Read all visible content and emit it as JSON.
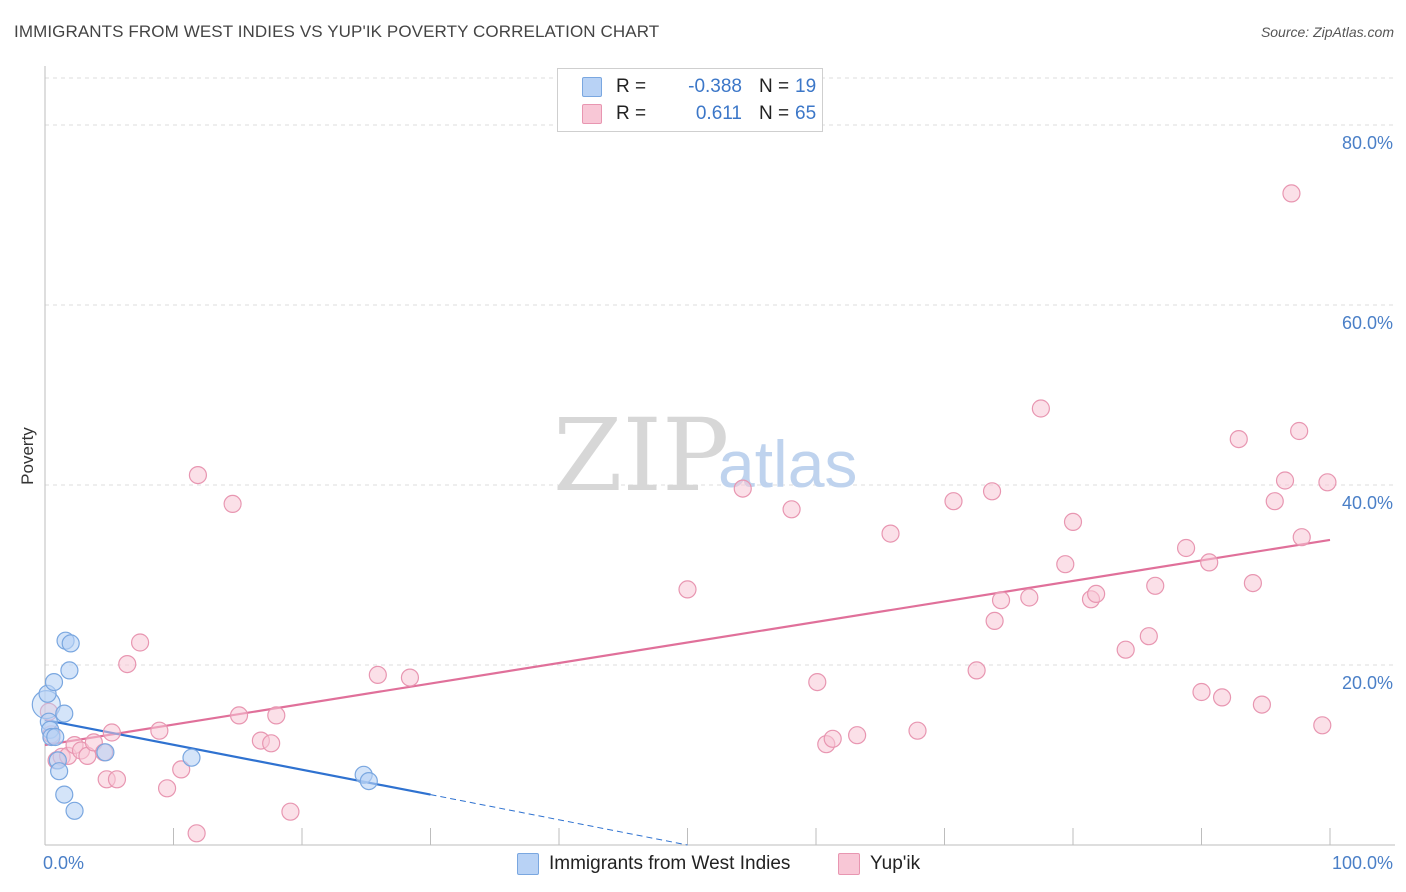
{
  "header": {
    "title": "IMMIGRANTS FROM WEST INDIES VS YUP'IK POVERTY CORRELATION CHART",
    "source": "Source: ZipAtlas.com"
  },
  "watermark": {
    "zip": "ZIP",
    "atlas": "atlas"
  },
  "legend": {
    "rows": [
      {
        "r_label": "R =",
        "r_value": "-0.388",
        "n_label": "N =",
        "n_value": "19"
      },
      {
        "r_label": "R =",
        "r_value": "0.611",
        "n_label": "N =",
        "n_value": "65"
      }
    ]
  },
  "bottom_legend": {
    "items": [
      {
        "label": "Immigrants from West Indies"
      },
      {
        "label": "Yup'ik"
      }
    ]
  },
  "colors": {
    "blue_fill": "#b8d2f5",
    "blue_stroke": "#7aa7e0",
    "blue_line": "#2f72d0",
    "pink_fill": "#f8c7d6",
    "pink_stroke": "#e896b1",
    "pink_line": "#e0709a",
    "tick_text": "#4a7fc7"
  },
  "chart_data": {
    "type": "scatter",
    "title": "IMMIGRANTS FROM WEST INDIES VS YUP'IK POVERTY CORRELATION CHART",
    "xlabel": "",
    "ylabel": "Poverty",
    "xlim": [
      0,
      100
    ],
    "ylim": [
      0,
      85
    ],
    "x_tick_labels": [
      "0.0%",
      "100.0%"
    ],
    "y_ticks": [
      {
        "value": 20,
        "label": "20.0%"
      },
      {
        "value": 40,
        "label": "40.0%"
      },
      {
        "value": 60,
        "label": "60.0%"
      },
      {
        "value": 80,
        "label": "80.0%"
      }
    ],
    "grid": true,
    "legend_position": "top-center",
    "series": [
      {
        "name": "Immigrants from West Indies",
        "color": "#7aa7e0",
        "points": [
          [
            0.1,
            15.6
          ],
          [
            0.2,
            16.8
          ],
          [
            0.3,
            13.7
          ],
          [
            0.4,
            12.8
          ],
          [
            0.5,
            12.0
          ],
          [
            0.7,
            18.1
          ],
          [
            0.8,
            12.0
          ],
          [
            1.0,
            9.4
          ],
          [
            1.1,
            8.2
          ],
          [
            1.5,
            14.6
          ],
          [
            1.5,
            5.6
          ],
          [
            1.6,
            22.7
          ],
          [
            1.9,
            19.4
          ],
          [
            2.0,
            22.4
          ],
          [
            2.3,
            3.8
          ],
          [
            4.7,
            10.3
          ],
          [
            11.4,
            9.7
          ],
          [
            24.8,
            7.8
          ],
          [
            25.2,
            7.1
          ]
        ],
        "trend": {
          "x": [
            0,
            30
          ],
          "y": [
            13.9,
            5.6
          ]
        },
        "trend_dashed": {
          "x": [
            30,
            50
          ],
          "y": [
            5.6,
            0.0
          ]
        }
      },
      {
        "name": "Yup'ik",
        "color": "#e896b1",
        "points": [
          [
            0.3,
            14.8
          ],
          [
            0.5,
            12.3
          ],
          [
            0.9,
            9.4
          ],
          [
            1.3,
            9.8
          ],
          [
            1.8,
            9.9
          ],
          [
            2.3,
            11.1
          ],
          [
            2.8,
            10.5
          ],
          [
            3.3,
            9.9
          ],
          [
            3.8,
            11.4
          ],
          [
            4.6,
            10.3
          ],
          [
            4.8,
            7.3
          ],
          [
            5.2,
            12.5
          ],
          [
            5.6,
            7.3
          ],
          [
            6.4,
            20.1
          ],
          [
            7.4,
            22.5
          ],
          [
            8.9,
            12.7
          ],
          [
            9.5,
            6.3
          ],
          [
            10.6,
            8.4
          ],
          [
            11.8,
            1.3
          ],
          [
            11.9,
            41.1
          ],
          [
            14.6,
            37.9
          ],
          [
            15.1,
            14.4
          ],
          [
            16.8,
            11.6
          ],
          [
            17.6,
            11.3
          ],
          [
            18.0,
            14.4
          ],
          [
            19.1,
            3.7
          ],
          [
            25.9,
            18.9
          ],
          [
            28.4,
            18.6
          ],
          [
            50.0,
            28.4
          ],
          [
            54.3,
            39.6
          ],
          [
            58.1,
            37.3
          ],
          [
            60.1,
            18.1
          ],
          [
            60.8,
            11.2
          ],
          [
            61.3,
            11.8
          ],
          [
            63.2,
            12.2
          ],
          [
            65.8,
            34.6
          ],
          [
            67.9,
            12.7
          ],
          [
            70.7,
            38.2
          ],
          [
            72.5,
            19.4
          ],
          [
            73.7,
            39.3
          ],
          [
            73.9,
            24.9
          ],
          [
            74.4,
            27.2
          ],
          [
            76.6,
            27.5
          ],
          [
            77.5,
            48.5
          ],
          [
            79.4,
            31.2
          ],
          [
            80.0,
            35.9
          ],
          [
            81.4,
            27.3
          ],
          [
            81.8,
            27.9
          ],
          [
            84.1,
            21.7
          ],
          [
            85.9,
            23.2
          ],
          [
            86.4,
            28.8
          ],
          [
            88.8,
            33.0
          ],
          [
            90.0,
            17.0
          ],
          [
            90.6,
            31.4
          ],
          [
            91.6,
            16.4
          ],
          [
            92.9,
            45.1
          ],
          [
            94.0,
            29.1
          ],
          [
            94.7,
            15.6
          ],
          [
            95.7,
            38.2
          ],
          [
            96.5,
            40.5
          ],
          [
            97.0,
            72.4
          ],
          [
            97.6,
            46.0
          ],
          [
            97.8,
            34.2
          ],
          [
            99.4,
            13.3
          ],
          [
            99.8,
            40.3
          ]
        ],
        "trend": {
          "x": [
            0,
            100
          ],
          "y": [
            11.1,
            33.9
          ]
        }
      }
    ]
  }
}
